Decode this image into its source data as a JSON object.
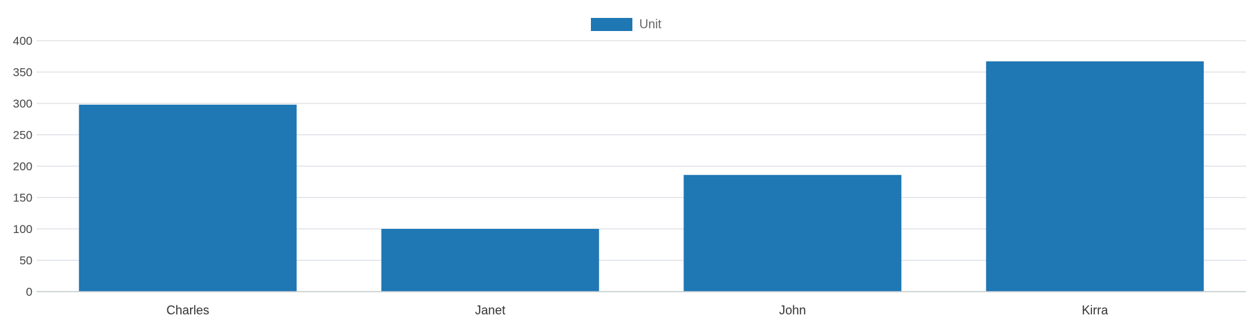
{
  "chart_data": {
    "type": "bar",
    "categories": [
      "Charles",
      "Janet",
      "John",
      "Kirra"
    ],
    "series": [
      {
        "name": "Unit",
        "values": [
          298,
          100,
          186,
          367
        ],
        "color": "#1f77b4"
      }
    ],
    "ylim": [
      0,
      400
    ],
    "yticks": [
      0,
      50,
      100,
      150,
      200,
      250,
      300,
      350,
      400
    ],
    "grid": true,
    "legend_position": "top-center"
  }
}
